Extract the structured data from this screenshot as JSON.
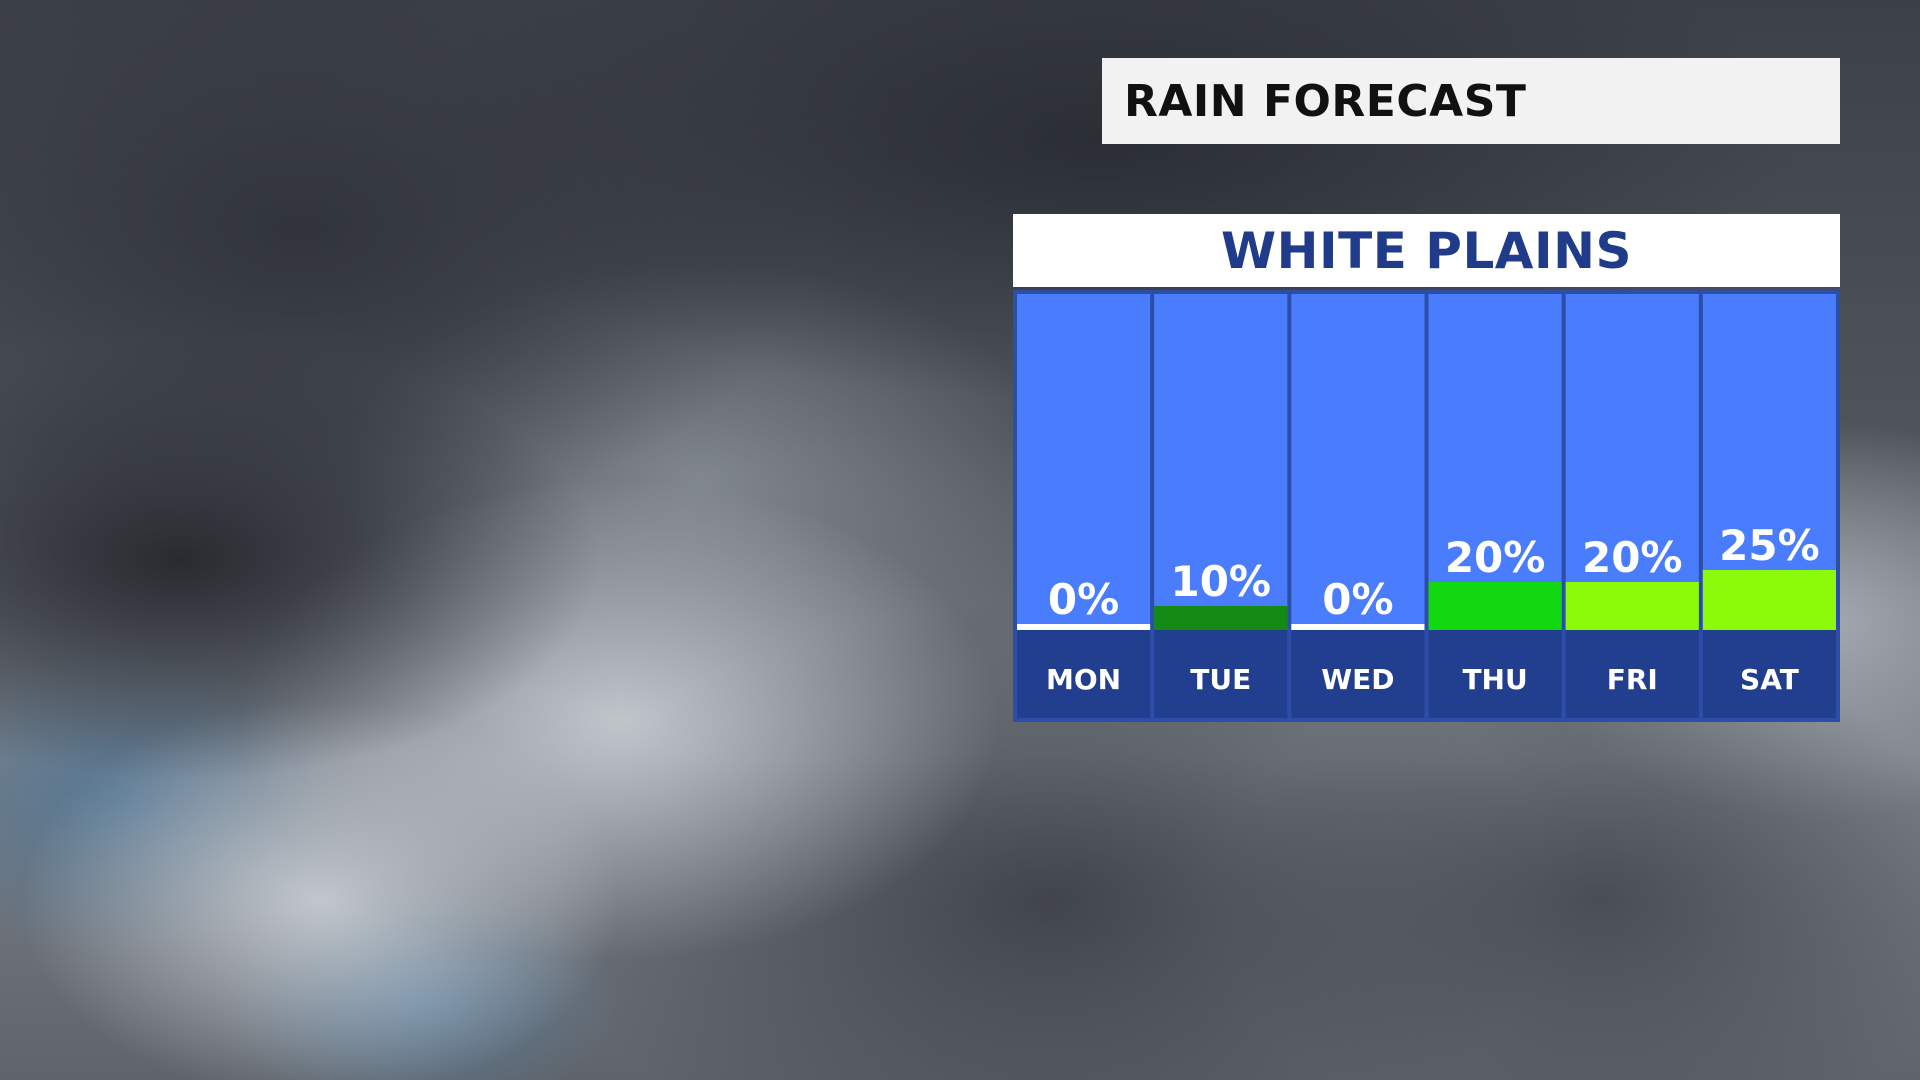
{
  "title": "RAIN FORECAST",
  "location": "WHITE PLAINS",
  "colors": {
    "column_bg": "#4a7dfd",
    "day_band": "#213e8f",
    "column_border": "#3556c2",
    "zero_line": "#ffffff",
    "low": "#138a13",
    "mid": "#12d812",
    "high": "#8cfb0a",
    "label_text": "#ffffff"
  },
  "chart_data": {
    "type": "bar",
    "title": "RAIN FORECAST",
    "subtitle": "WHITE PLAINS",
    "categories": [
      "MON",
      "TUE",
      "WED",
      "THU",
      "FRI",
      "SAT"
    ],
    "values": [
      0,
      10,
      0,
      20,
      20,
      25
    ],
    "value_labels": [
      "0%",
      "10%",
      "0%",
      "20%",
      "20%",
      "25%"
    ],
    "unit": "%",
    "bar_colors": [
      "#ffffff",
      "#138a13",
      "#ffffff",
      "#12d812",
      "#8cfb0a",
      "#8cfb0a"
    ],
    "xlabel": "",
    "ylabel": "",
    "grid": false,
    "legend": "none"
  }
}
